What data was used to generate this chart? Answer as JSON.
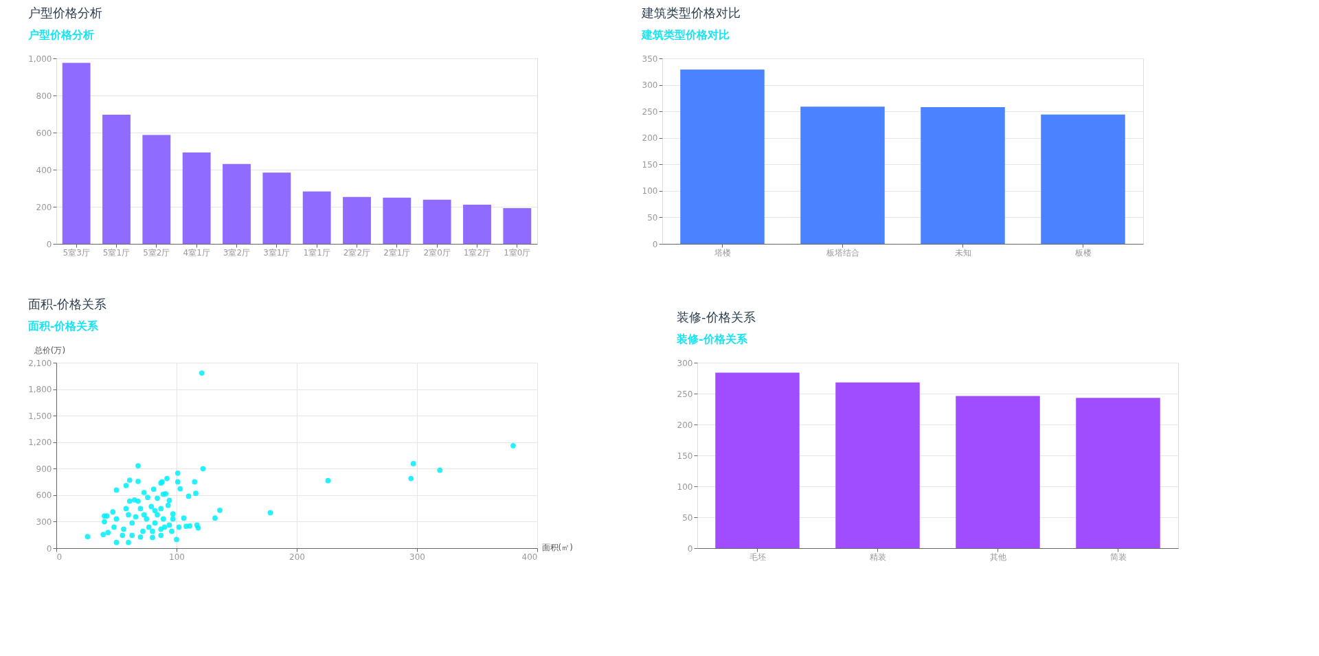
{
  "chart_data": [
    {
      "type": "bar",
      "title": "户型价格分析",
      "subtitle": "户型价格分析",
      "categories": [
        "5室3厅",
        "5室1厅",
        "5室2厅",
        "4室1厅",
        "3室2厅",
        "3室1厅",
        "1室1厅",
        "2室2厅",
        "2室1厅",
        "2室0厅",
        "1室2厅",
        "1室0厅"
      ],
      "values": [
        976,
        696,
        587,
        493,
        431,
        384,
        282,
        253,
        249,
        238,
        211,
        193
      ],
      "color": "#8f6bff",
      "ylim": [
        0,
        1000
      ],
      "yticks": [
        0,
        200,
        400,
        600,
        800,
        {
          "value": 1000,
          "label": "1,000"
        }
      ],
      "grid": "y"
    },
    {
      "type": "bar",
      "title": "建筑类型价格对比",
      "subtitle": "建筑类型价格对比",
      "categories": [
        "塔楼",
        "板塔结合",
        "未知",
        "板楼"
      ],
      "values": [
        329,
        259,
        258,
        244
      ],
      "color": "#4a82ff",
      "ylim": [
        0,
        350
      ],
      "yticks": [
        0,
        50,
        100,
        150,
        200,
        250,
        300,
        350
      ],
      "grid": "y"
    },
    {
      "type": "scatter",
      "title": "面积-价格关系",
      "subtitle": "面积-价格关系",
      "xlabel": "面积(㎡)",
      "ylabel": "总价(万)",
      "marker": "circle",
      "color": "#00eefa",
      "xlim": [
        0,
        400
      ],
      "xticks": [
        0,
        100,
        200,
        300,
        400
      ],
      "ylim": [
        0,
        2100
      ],
      "yticks": [
        0,
        300,
        600,
        900,
        {
          "value": 1200,
          "label": "1,200"
        },
        {
          "value": 1500,
          "label": "1,500"
        },
        {
          "value": 1800,
          "label": "1,800"
        },
        {
          "value": 2100,
          "label": "2,100"
        }
      ],
      "grid": true,
      "x": [
        121,
        380,
        297,
        295,
        319,
        226,
        178,
        132,
        136,
        122,
        115,
        116,
        110,
        117,
        118,
        111,
        106,
        101,
        101,
        103,
        100,
        92,
        88,
        68,
        68,
        61,
        58,
        50,
        26,
        39,
        40,
        42,
        40,
        47,
        43,
        50,
        60,
        58,
        61,
        65,
        68,
        73,
        81,
        76,
        91,
        94,
        93,
        97,
        87,
        97,
        87,
        80,
        70,
        55,
        48,
        50,
        56,
        63,
        66,
        73,
        77,
        82,
        84,
        87,
        90,
        96,
        79,
        84,
        89,
        70,
        63,
        60,
        72,
        80,
        87,
        94,
        102,
        108,
        75,
        82,
        89
      ],
      "values": [
        1983,
        1160,
        957,
        789,
        882,
        765,
        401,
        341,
        429,
        900,
        751,
        621,
        588,
        261,
        229,
        252,
        341,
        849,
        751,
        672,
        98,
        789,
        751,
        933,
        756,
        770,
        709,
        658,
        131,
        154,
        364,
        364,
        299,
        411,
        177,
        65,
        65,
        448,
        532,
        546,
        532,
        630,
        667,
        574,
        616,
        541,
        485,
        387,
        737,
        331,
        145,
        121,
        126,
        145,
        238,
        331,
        215,
        285,
        355,
        378,
        238,
        285,
        378,
        448,
        238,
        191,
        471,
        565,
        611,
        448,
        145,
        378,
        191,
        191,
        215,
        261,
        238,
        247,
        331,
        425,
        331
      ]
    },
    {
      "type": "bar",
      "title": "装修-价格关系",
      "subtitle": "装修-价格关系",
      "categories": [
        "毛坯",
        "精装",
        "其他",
        "简装"
      ],
      "values": [
        284,
        268,
        246,
        243
      ],
      "color": "#a04cff",
      "ylim": [
        0,
        300
      ],
      "yticks": [
        0,
        50,
        100,
        150,
        200,
        250,
        300
      ],
      "grid": "y"
    }
  ]
}
